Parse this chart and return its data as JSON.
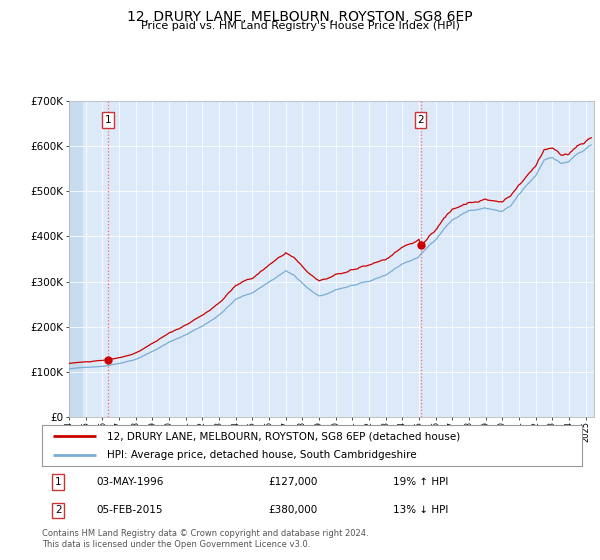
{
  "title": "12, DRURY LANE, MELBOURN, ROYSTON, SG8 6EP",
  "subtitle": "Price paid vs. HM Land Registry's House Price Index (HPI)",
  "legend_line1": "12, DRURY LANE, MELBOURN, ROYSTON, SG8 6EP (detached house)",
  "legend_line2": "HPI: Average price, detached house, South Cambridgeshire",
  "purchase1_date": "03-MAY-1996",
  "purchase1_price": 127000,
  "purchase1_label": "19% ↑ HPI",
  "purchase1_year": 1996.34,
  "purchase2_date": "05-FEB-2015",
  "purchase2_price": 380000,
  "purchase2_label": "13% ↓ HPI",
  "purchase2_year": 2015.09,
  "xmin": 1994.0,
  "xmax": 2025.5,
  "ymin": 0,
  "ymax": 700000,
  "background_color": "#dce9f8",
  "grid_color": "#ffffff",
  "red_line_color": "#cc0000",
  "blue_line_color": "#7aadd4",
  "dashed_line_color": "#ff6666",
  "marker_color": "#cc0000",
  "footnote": "Contains HM Land Registry data © Crown copyright and database right 2024.\nThis data is licensed under the Open Government Licence v3.0.",
  "ytick_labels": [
    "£0",
    "£100K",
    "£200K",
    "£300K",
    "£400K",
    "£500K",
    "£600K",
    "£700K"
  ],
  "ytick_values": [
    0,
    100000,
    200000,
    300000,
    400000,
    500000,
    600000,
    700000
  ]
}
